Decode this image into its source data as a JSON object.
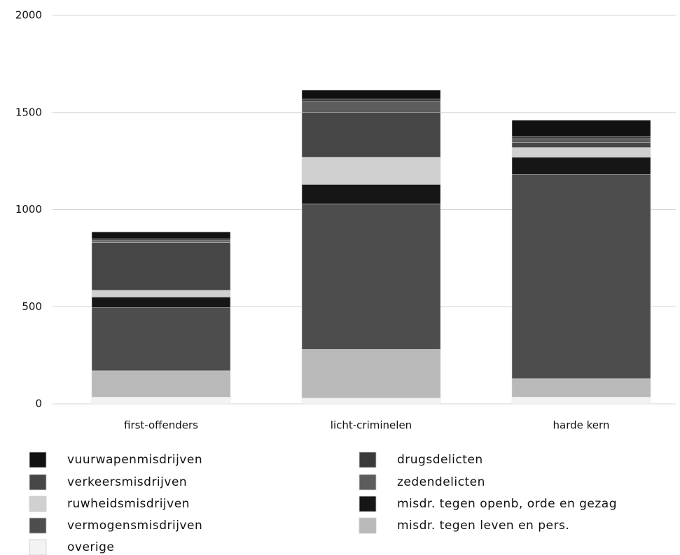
{
  "chart_data": {
    "type": "stacked_bar",
    "categories": [
      "first-offenders",
      "licht-criminelen",
      "harde kern"
    ],
    "series": [
      {
        "name": "overige",
        "color": "#f3f3f3",
        "values": [
          35,
          30,
          35
        ]
      },
      {
        "name": "misdr. tegen leven en pers.",
        "color": "#b9b9b9",
        "values": [
          135,
          250,
          95
        ]
      },
      {
        "name": "vermogensmisdrijven",
        "color": "#4d4d4d",
        "values": [
          325,
          750,
          1050
        ]
      },
      {
        "name": "misdr. tegen openb, orde en gezag",
        "color": "#161616",
        "values": [
          55,
          100,
          90
        ]
      },
      {
        "name": "ruwheidsmisdrijven",
        "color": "#d0d0d0",
        "values": [
          35,
          140,
          50
        ]
      },
      {
        "name": "verkeersmisdrijven",
        "color": "#464646",
        "values": [
          245,
          230,
          25
        ]
      },
      {
        "name": "zedendelicten",
        "color": "#5c5c5c",
        "values": [
          10,
          55,
          20
        ]
      },
      {
        "name": "drugsdelicten",
        "color": "#3a3a3a",
        "values": [
          10,
          15,
          10
        ]
      },
      {
        "name": "vuurwapenmisdrijven",
        "color": "#111111",
        "values": [
          35,
          45,
          85
        ]
      }
    ],
    "ylim": [
      0,
      2000
    ],
    "yticks": [
      0,
      500,
      1000,
      1500,
      2000
    ],
    "grid": true
  }
}
